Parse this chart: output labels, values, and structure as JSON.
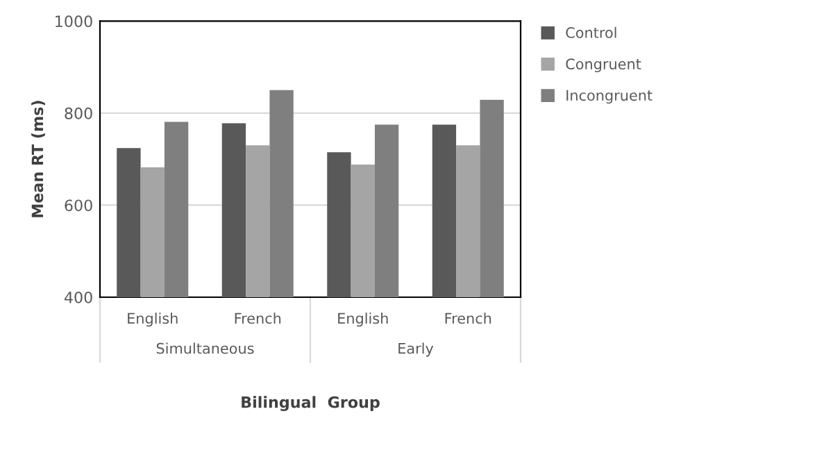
{
  "chart_data": {
    "type": "bar",
    "xlabel": "Bilingual  Group",
    "ylabel": "Mean RT (ms)",
    "categories": [
      "English",
      "French",
      "English",
      "French"
    ],
    "series": [
      {
        "name": "Control",
        "color": "#595959",
        "values": [
          724,
          778,
          715,
          775
        ]
      },
      {
        "name": "Congruent",
        "color": "#a5a5a5",
        "values": [
          682,
          730,
          688,
          730
        ]
      },
      {
        "name": "Incongruent",
        "color": "#7f7f7f",
        "values": [
          781,
          850,
          775,
          829
        ]
      }
    ],
    "annotations": [
      "Simultaneous",
      "Early"
    ],
    "ylim": [
      400,
      1000
    ],
    "yticks": [
      400,
      600,
      800,
      1000
    ],
    "grid": "y",
    "legend": "right"
  }
}
